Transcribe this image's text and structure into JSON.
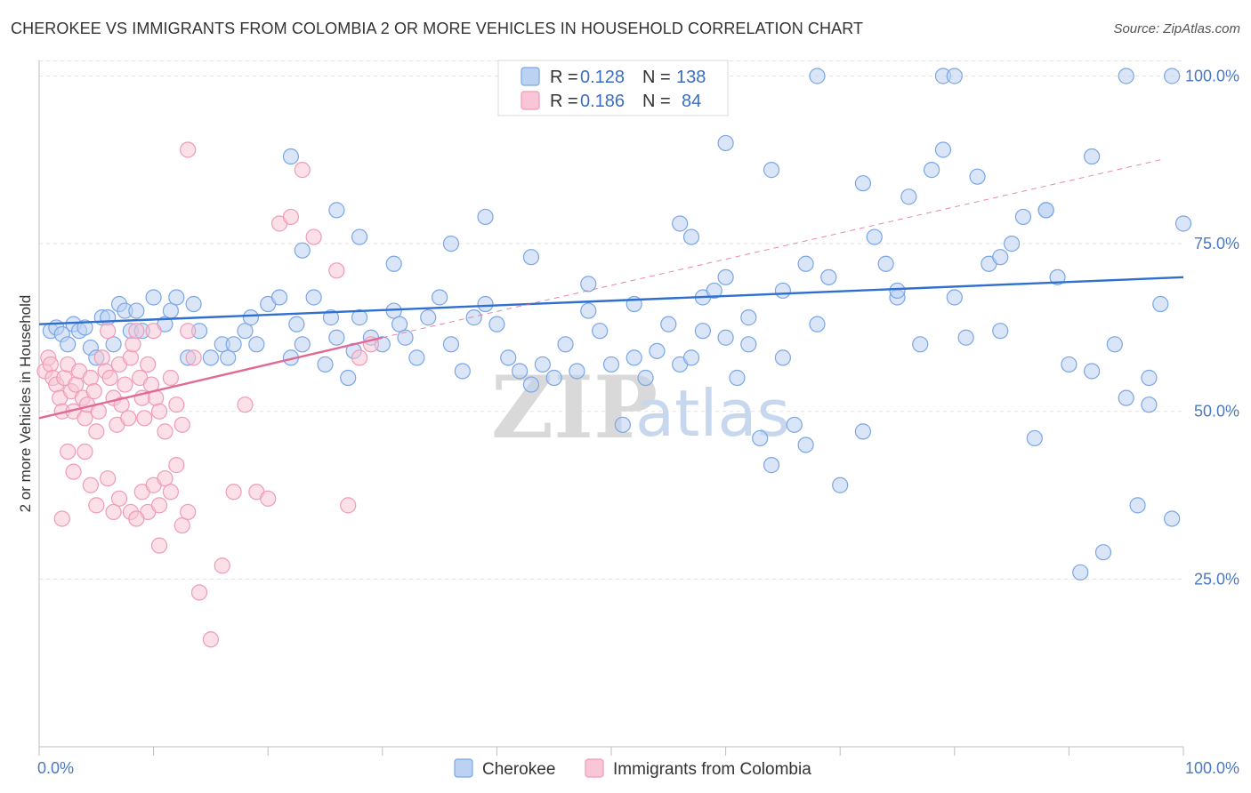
{
  "title": "CHEROKEE VS IMMIGRANTS FROM COLOMBIA 2 OR MORE VEHICLES IN HOUSEHOLD CORRELATION CHART",
  "source": "Source: ZipAtlas.com",
  "watermark": {
    "zip": "ZIP",
    "atlas": "atlas"
  },
  "chart_data": {
    "type": "scatter",
    "ylabel": "2 or more Vehicles in Household",
    "xlim": [
      0,
      100
    ],
    "ylim": [
      0,
      102
    ],
    "grid": true,
    "x_tick_labels": [
      "0.0%",
      "100.0%"
    ],
    "y_ticks": [
      {
        "value": 25,
        "label": "25.0%"
      },
      {
        "value": 50,
        "label": "50.0%"
      },
      {
        "value": 75,
        "label": "75.0%"
      },
      {
        "value": 100,
        "label": "100.0%"
      }
    ],
    "legend": {
      "placement": "top-center",
      "entries": [
        {
          "r_label": "R =",
          "r": "0.128",
          "n_label": "N =",
          "n": "138"
        },
        {
          "r_label": "R =",
          "r": "0.186",
          "n_label": "N =",
          "n": "84"
        }
      ]
    },
    "series": [
      {
        "name": "Cherokee",
        "color": "#7aa6e6",
        "fill": "#bcd2f3",
        "trend": {
          "x": [
            0,
            100
          ],
          "y": [
            63.0,
            70.0
          ],
          "style": "solid",
          "color": "#2f6fcf"
        },
        "points": [
          [
            1,
            62
          ],
          [
            1.5,
            62.5
          ],
          [
            2,
            61.5
          ],
          [
            2.5,
            60
          ],
          [
            3,
            63
          ],
          [
            3.5,
            62
          ],
          [
            4,
            62.5
          ],
          [
            4.5,
            59.5
          ],
          [
            5,
            58
          ],
          [
            5.5,
            64
          ],
          [
            6,
            64
          ],
          [
            6.5,
            60
          ],
          [
            7,
            66
          ],
          [
            7.5,
            65
          ],
          [
            8,
            62
          ],
          [
            8.5,
            65
          ],
          [
            9,
            62
          ],
          [
            10,
            67
          ],
          [
            11,
            63
          ],
          [
            11.5,
            65
          ],
          [
            12,
            67
          ],
          [
            13,
            58
          ],
          [
            13.5,
            66
          ],
          [
            14,
            62
          ],
          [
            15,
            58
          ],
          [
            16,
            60
          ],
          [
            16.5,
            58
          ],
          [
            17,
            60
          ],
          [
            18,
            62
          ],
          [
            18.5,
            64
          ],
          [
            19,
            60
          ],
          [
            20,
            66
          ],
          [
            21,
            67
          ],
          [
            22,
            58
          ],
          [
            22.5,
            63
          ],
          [
            23,
            60
          ],
          [
            24,
            67
          ],
          [
            25,
            57
          ],
          [
            25.5,
            64
          ],
          [
            26,
            61
          ],
          [
            27,
            55
          ],
          [
            27.5,
            59
          ],
          [
            28,
            64
          ],
          [
            29,
            61
          ],
          [
            30,
            60
          ],
          [
            31,
            65
          ],
          [
            31.5,
            63
          ],
          [
            32,
            61
          ],
          [
            33,
            58
          ],
          [
            34,
            64
          ],
          [
            35,
            67
          ],
          [
            36,
            60
          ],
          [
            37,
            56
          ],
          [
            38,
            64
          ],
          [
            39,
            66
          ],
          [
            40,
            63
          ],
          [
            41,
            58
          ],
          [
            42,
            56
          ],
          [
            43,
            54
          ],
          [
            44,
            57
          ],
          [
            45,
            55
          ],
          [
            46,
            60
          ],
          [
            47,
            56
          ],
          [
            48,
            65
          ],
          [
            49,
            62
          ],
          [
            50,
            57
          ],
          [
            51,
            48
          ],
          [
            52,
            58
          ],
          [
            53,
            55
          ],
          [
            54,
            59
          ],
          [
            55,
            63
          ],
          [
            56,
            57
          ],
          [
            57,
            58
          ],
          [
            58,
            67
          ],
          [
            59,
            68
          ],
          [
            60,
            61
          ],
          [
            61,
            55
          ],
          [
            62,
            60
          ],
          [
            63,
            46
          ],
          [
            64,
            42
          ],
          [
            65,
            58
          ],
          [
            66,
            48
          ],
          [
            67,
            45
          ],
          [
            68,
            63
          ],
          [
            69,
            70
          ],
          [
            70,
            39
          ],
          [
            72,
            47
          ],
          [
            73,
            76
          ],
          [
            74,
            72
          ],
          [
            75,
            67
          ],
          [
            76,
            82
          ],
          [
            77,
            60
          ],
          [
            78,
            86
          ],
          [
            79,
            89
          ],
          [
            80,
            67
          ],
          [
            81,
            61
          ],
          [
            82,
            85
          ],
          [
            83,
            72
          ],
          [
            84,
            62
          ],
          [
            85,
            75
          ],
          [
            86,
            79
          ],
          [
            87,
            46
          ],
          [
            88,
            80
          ],
          [
            89,
            70
          ],
          [
            90,
            57
          ],
          [
            91,
            26
          ],
          [
            92,
            56
          ],
          [
            93,
            29
          ],
          [
            94,
            60
          ],
          [
            95,
            52
          ],
          [
            96,
            36
          ],
          [
            97,
            51
          ],
          [
            98,
            66
          ],
          [
            99,
            34
          ],
          [
            100,
            78
          ],
          [
            22,
            88
          ],
          [
            23,
            74
          ],
          [
            26,
            80
          ],
          [
            28,
            76
          ],
          [
            31,
            72
          ],
          [
            36,
            75
          ],
          [
            39,
            79
          ],
          [
            43,
            73
          ],
          [
            48,
            69
          ],
          [
            52,
            66
          ],
          [
            56,
            78
          ],
          [
            57,
            76
          ],
          [
            60,
            90
          ],
          [
            64,
            86
          ],
          [
            68,
            100
          ],
          [
            72,
            84
          ],
          [
            75,
            68
          ],
          [
            79,
            100
          ],
          [
            80,
            100
          ],
          [
            84,
            73
          ],
          [
            88,
            80
          ],
          [
            92,
            88
          ],
          [
            95,
            100
          ],
          [
            97,
            55
          ],
          [
            99,
            100
          ],
          [
            62,
            64
          ],
          [
            67,
            72
          ],
          [
            65,
            68
          ],
          [
            60,
            70
          ],
          [
            58,
            62
          ]
        ]
      },
      {
        "name": "Immigrants from Colombia",
        "color": "#f09ab8",
        "fill": "#f8c6d6",
        "trend": {
          "x": [
            0,
            30
          ],
          "y": [
            49.0,
            61.0
          ],
          "style": "solid",
          "color": "#e06a95",
          "extension": {
            "x": [
              30,
              98
            ],
            "y": [
              61.0,
              87.5
            ],
            "style": "dashed"
          }
        },
        "points": [
          [
            0.5,
            56
          ],
          [
            0.8,
            58
          ],
          [
            1,
            57
          ],
          [
            1.2,
            55
          ],
          [
            1.5,
            54
          ],
          [
            1.8,
            52
          ],
          [
            2,
            50
          ],
          [
            2.2,
            55
          ],
          [
            2.5,
            57
          ],
          [
            2.8,
            53
          ],
          [
            3,
            50
          ],
          [
            3.2,
            54
          ],
          [
            3.5,
            56
          ],
          [
            3.8,
            52
          ],
          [
            4,
            49
          ],
          [
            4.2,
            51
          ],
          [
            4.5,
            55
          ],
          [
            4.8,
            53
          ],
          [
            5,
            47
          ],
          [
            5.2,
            50
          ],
          [
            5.5,
            58
          ],
          [
            5.8,
            56
          ],
          [
            6,
            62
          ],
          [
            6.2,
            55
          ],
          [
            6.5,
            52
          ],
          [
            6.8,
            48
          ],
          [
            7,
            57
          ],
          [
            7.2,
            51
          ],
          [
            7.5,
            54
          ],
          [
            7.8,
            49
          ],
          [
            8,
            58
          ],
          [
            8.2,
            60
          ],
          [
            8.5,
            62
          ],
          [
            8.8,
            55
          ],
          [
            9,
            52
          ],
          [
            9.2,
            49
          ],
          [
            9.5,
            57
          ],
          [
            9.8,
            54
          ],
          [
            10,
            62
          ],
          [
            10.2,
            52
          ],
          [
            10.5,
            50
          ],
          [
            11,
            47
          ],
          [
            11.5,
            55
          ],
          [
            12,
            51
          ],
          [
            12.5,
            48
          ],
          [
            13,
            62
          ],
          [
            13.5,
            58
          ],
          [
            2,
            34
          ],
          [
            3,
            41
          ],
          [
            4,
            44
          ],
          [
            5,
            36
          ],
          [
            6,
            40
          ],
          [
            7,
            37
          ],
          [
            8,
            35
          ],
          [
            9,
            38
          ],
          [
            9.5,
            35
          ],
          [
            10,
            39
          ],
          [
            10.5,
            36
          ],
          [
            11,
            40
          ],
          [
            11.5,
            38
          ],
          [
            12,
            42
          ],
          [
            12.5,
            33
          ],
          [
            13,
            35
          ],
          [
            14,
            23
          ],
          [
            15,
            16
          ],
          [
            16,
            27
          ],
          [
            17,
            38
          ],
          [
            18,
            51
          ],
          [
            19,
            38
          ],
          [
            20,
            37
          ],
          [
            21,
            78
          ],
          [
            22,
            79
          ],
          [
            23,
            86
          ],
          [
            24,
            76
          ],
          [
            26,
            71
          ],
          [
            27,
            36
          ],
          [
            28,
            58
          ],
          [
            29,
            60
          ],
          [
            2.5,
            44
          ],
          [
            4.5,
            39
          ],
          [
            6.5,
            35
          ],
          [
            8.5,
            34
          ],
          [
            10.5,
            30
          ],
          [
            13,
            89
          ]
        ]
      }
    ]
  }
}
